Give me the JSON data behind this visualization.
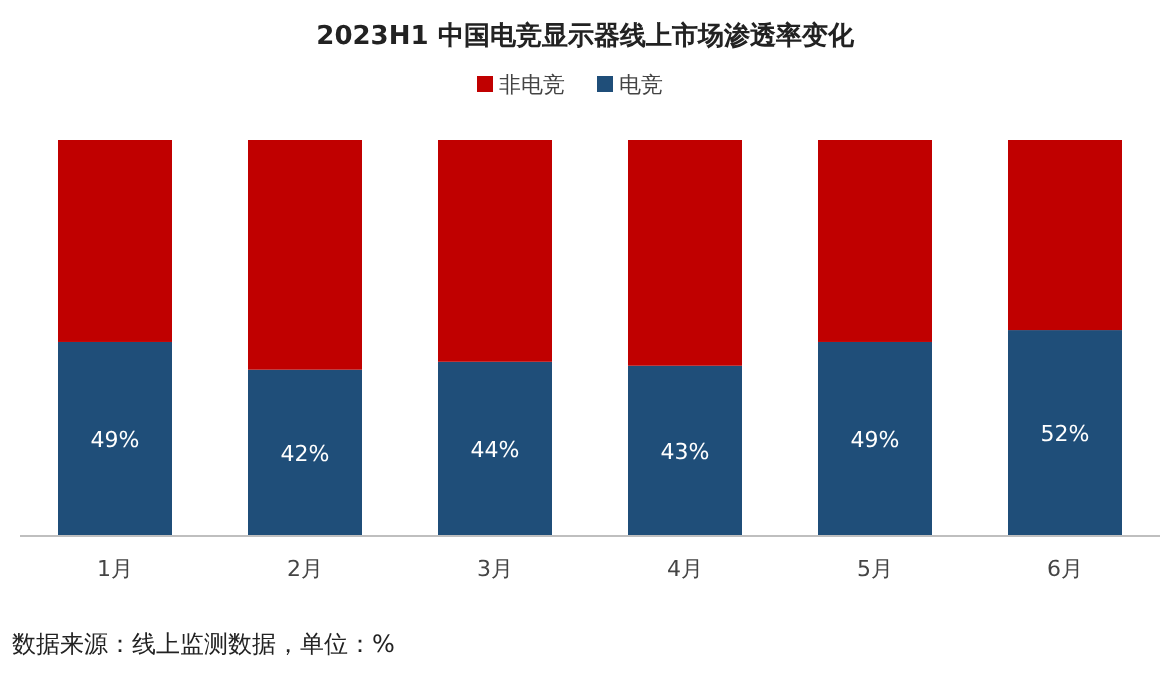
{
  "chart_data": {
    "type": "bar",
    "stacked": true,
    "title": "2023H1 中国电竞显示器线上市场渗透率变化",
    "categories": [
      "1月",
      "2月",
      "3月",
      "4月",
      "5月",
      "6月"
    ],
    "series": [
      {
        "name": "电竞",
        "color": "#1f4e79",
        "values": [
          49,
          42,
          44,
          43,
          49,
          52
        ],
        "value_labels": [
          "49%",
          "42%",
          "44%",
          "43%",
          "49%",
          "52%"
        ]
      },
      {
        "name": "非电竞",
        "color": "#c00000",
        "values": [
          51,
          58,
          56,
          57,
          51,
          48
        ]
      }
    ],
    "legend": "top",
    "grid": false,
    "annotations": [
      "数据来源：线上监测数据，单位：%"
    ]
  }
}
